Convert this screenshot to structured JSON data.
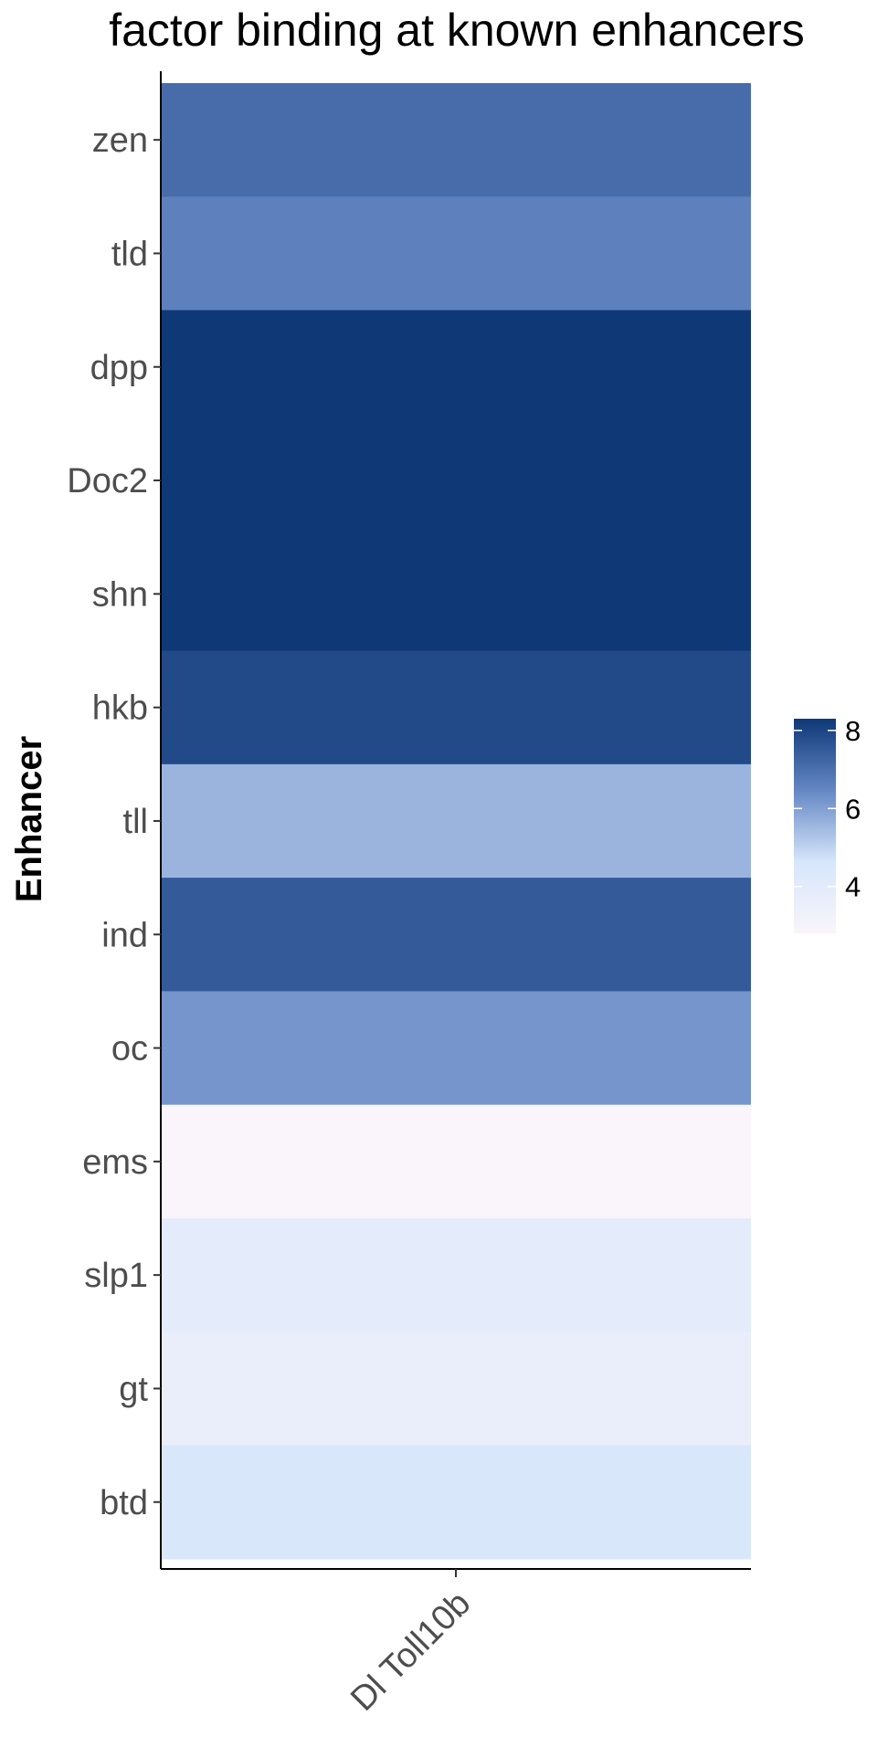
{
  "chart_data": {
    "type": "heatmap",
    "title": "factor binding at known enhancers",
    "xlabel": "",
    "ylabel": "Enhancer",
    "x_categories": [
      "Dl Toll10b"
    ],
    "y_categories": [
      "zen",
      "tld",
      "dpp",
      "Doc2",
      "shn",
      "hkb",
      "tll",
      "ind",
      "oc",
      "ems",
      "slp1",
      "gt",
      "btd"
    ],
    "values": [
      [
        7.1
      ],
      [
        6.6
      ],
      [
        8.3
      ],
      [
        8.3
      ],
      [
        8.3
      ],
      [
        7.9
      ],
      [
        5.6
      ],
      [
        7.5
      ],
      [
        6.2
      ],
      [
        2.8
      ],
      [
        3.9
      ],
      [
        3.6
      ],
      [
        4.5
      ]
    ],
    "colorbar": {
      "ticks": [
        4,
        6,
        8
      ],
      "range": [
        2.8,
        8.3
      ],
      "colors": [
        "#F9F5FA",
        "#D6E6FB",
        "#6487C4",
        "#0F3877"
      ]
    },
    "grid": false,
    "legend_position": "right"
  }
}
